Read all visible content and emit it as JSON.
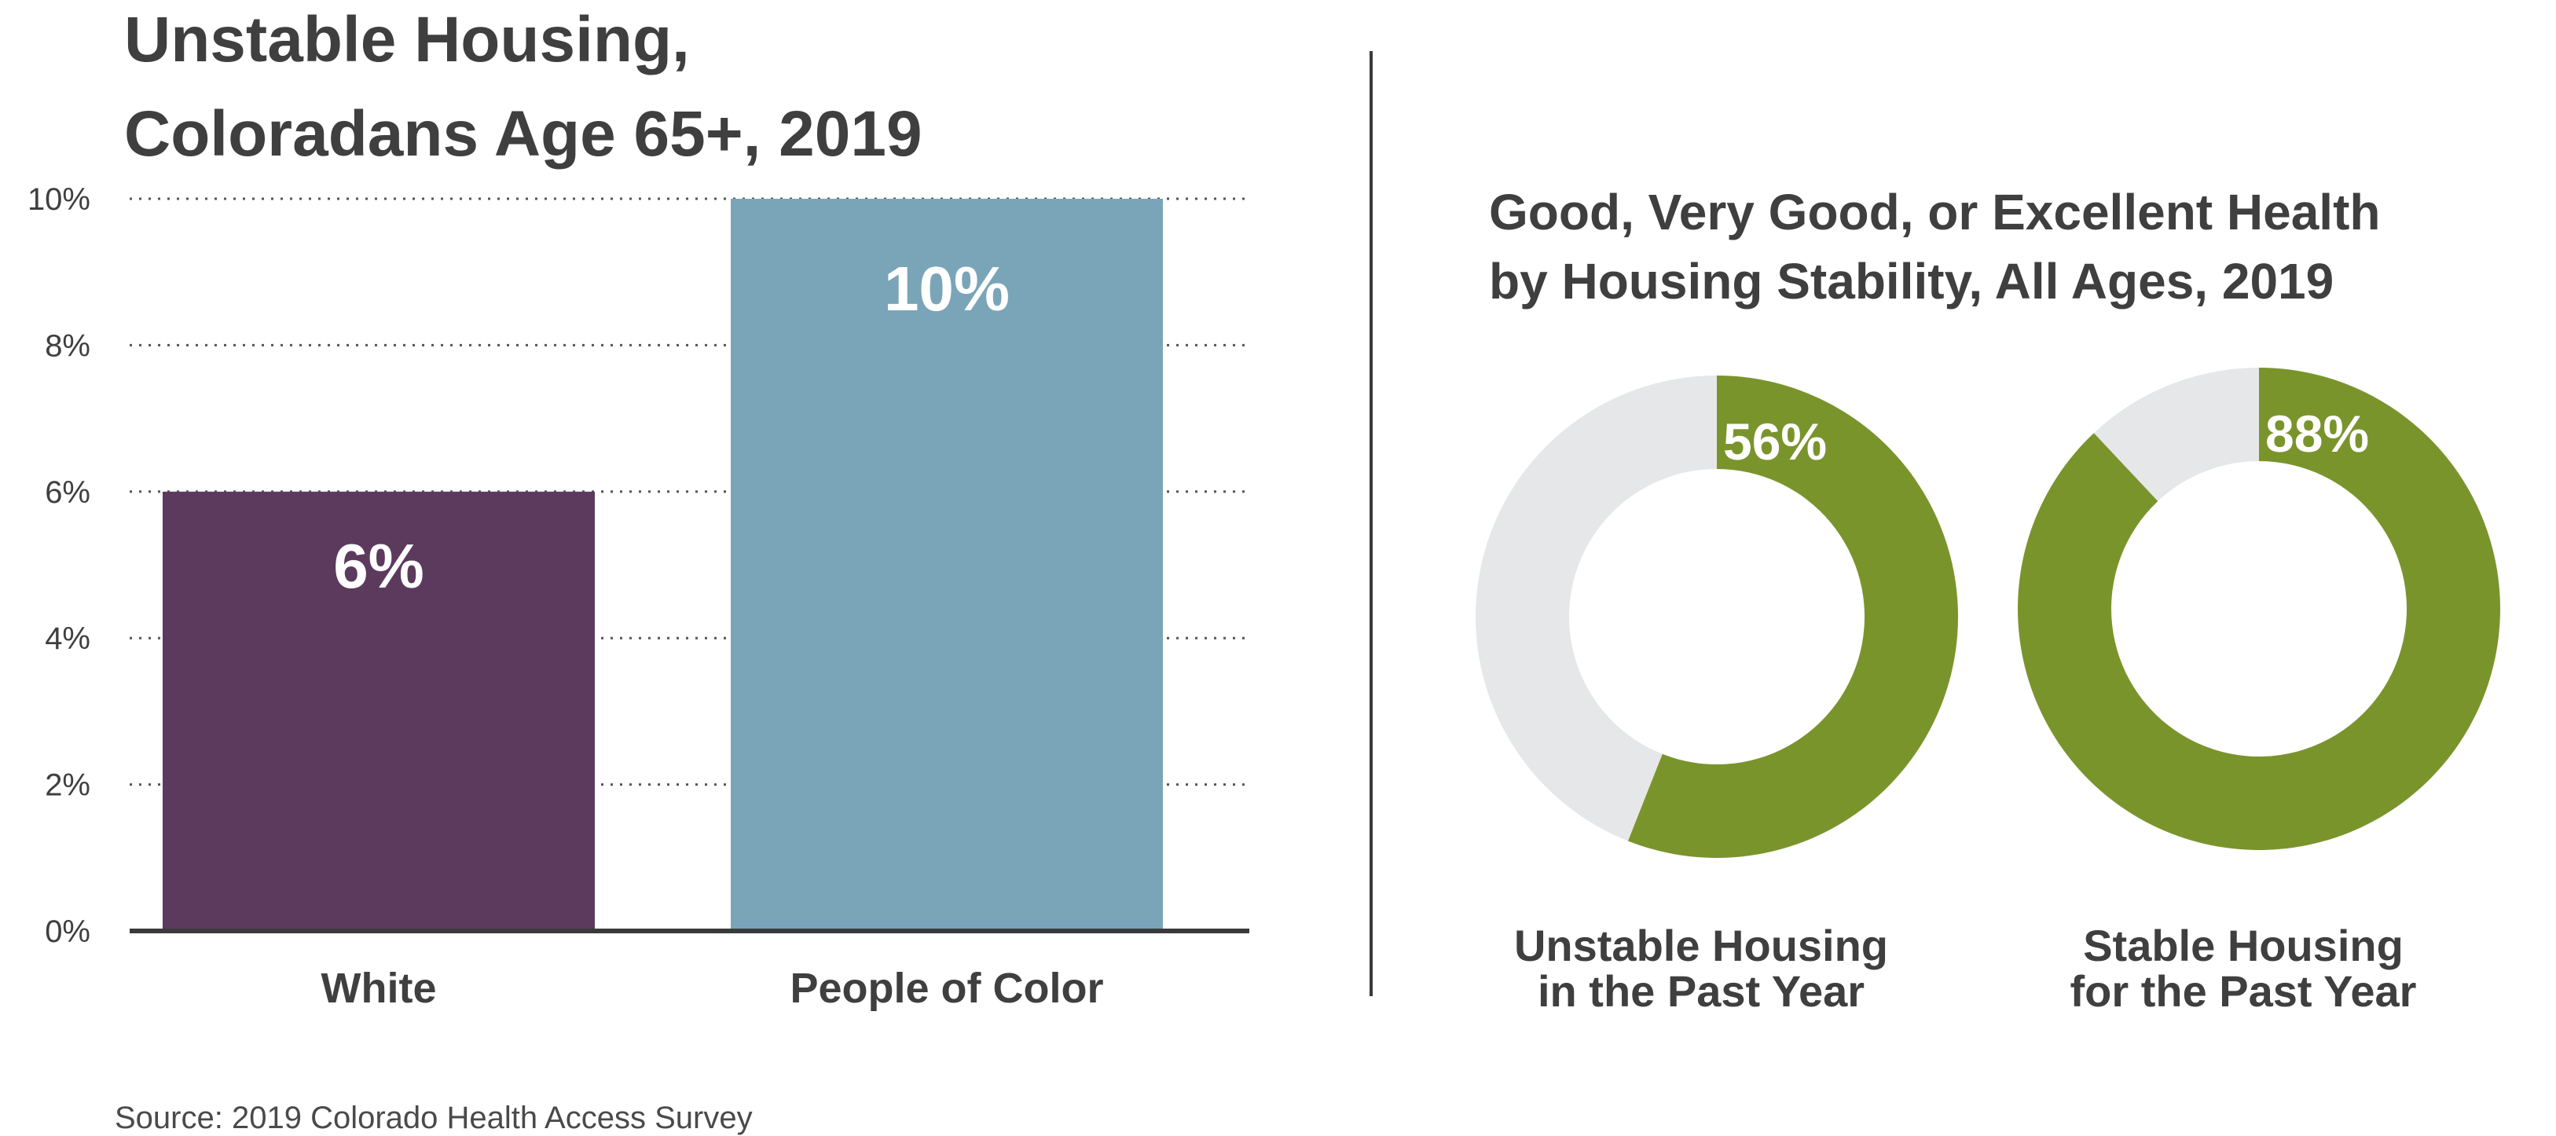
{
  "left_title": [
    "Unstable Housing,",
    "Coloradans Age 65+, 2019"
  ],
  "right_title": [
    "Good, Very Good, or Excellent Health",
    "by Housing Stability, All Ages, 2019"
  ],
  "source": "Source: 2019 Colorado Health Access Survey",
  "colors": {
    "white_bar": "#5c3a5e",
    "poc_bar": "#7aa5b8",
    "donut_value": "#7a942c",
    "donut_rest": "#e6e7e8",
    "text": "#3f3f3f"
  },
  "chart_data": [
    {
      "type": "bar",
      "title": "Unstable Housing, Coloradans Age 65+, 2019",
      "categories": [
        "White",
        "People of Color"
      ],
      "values": [
        6,
        10
      ],
      "value_labels": [
        "6%",
        "10%"
      ],
      "ylim": [
        0,
        10
      ],
      "yticks": [
        0,
        2,
        4,
        6,
        8,
        10
      ],
      "ytick_labels": [
        "0%",
        "2%",
        "4%",
        "6%",
        "8%",
        "10%"
      ],
      "grid": true,
      "grid_style": "dotted"
    },
    {
      "type": "pie",
      "subtype": "donut",
      "title": "Good, Very Good, or Excellent Health by Housing Stability, All Ages, 2019",
      "charts": [
        {
          "label": [
            "Unstable Housing",
            "in the Past Year"
          ],
          "value": 56,
          "value_label": "56%"
        },
        {
          "label": [
            "Stable Housing",
            "for the Past Year"
          ],
          "value": 88,
          "value_label": "88%"
        }
      ]
    }
  ]
}
